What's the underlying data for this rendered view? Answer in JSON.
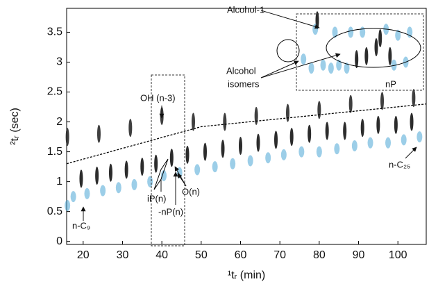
{
  "chart_data": {
    "type": "scatter",
    "x_label": "¹tᵣ (min)",
    "y_label": "²tᵣ (sec)",
    "xlim": [
      15.8,
      107.2
    ],
    "ylim": [
      -0.05,
      3.9
    ],
    "xticks": [
      20,
      30,
      40,
      50,
      60,
      70,
      80,
      90,
      100
    ],
    "yticks": [
      0,
      0.5,
      1,
      1.5,
      2,
      2.5,
      3,
      3.5
    ],
    "annotations": {
      "alcohol_1": "Alcohol-1",
      "alcohol": "Alcohol",
      "isomers": "isomers",
      "np": "nP",
      "oh": "OH (n-3)",
      "ip": "iP(n)",
      "nPn": "-nP(n)",
      "on": "O(n)",
      "c9": "n-C₉",
      "c25": "n-C₂₅"
    },
    "boundary": {
      "x": [
        15.8,
        50,
        107.2
      ],
      "y": [
        1.3,
        1.92,
        2.3
      ]
    },
    "series": [
      {
        "marker": "streak",
        "color": "#151515",
        "x": [
          19.5,
          23.5,
          27,
          31,
          35,
          38.5,
          42.5,
          46.5,
          51,
          55.5,
          60,
          64.5,
          69,
          73,
          77.5,
          82,
          86.5,
          91,
          95,
          99.5,
          103.5
        ],
        "y": [
          1.05,
          1.1,
          1.15,
          1.2,
          1.25,
          1.3,
          1.4,
          1.45,
          1.5,
          1.55,
          1.6,
          1.65,
          1.7,
          1.75,
          1.8,
          1.85,
          1.85,
          1.9,
          1.95,
          1.95,
          2.0
        ]
      },
      {
        "marker": "spot",
        "color": "#4ba6d6",
        "x": [
          16,
          17.5,
          21,
          25,
          29,
          33,
          37,
          40.5,
          44.5,
          49,
          53.5,
          58,
          62.5,
          67,
          71,
          75.5,
          80,
          84.5,
          89,
          93,
          97.5,
          101.5,
          105.5
        ],
        "y": [
          0.6,
          0.75,
          0.8,
          0.85,
          0.9,
          0.95,
          1.0,
          1.1,
          1.15,
          1.2,
          1.25,
          1.3,
          1.35,
          1.4,
          1.45,
          1.5,
          1.5,
          1.55,
          1.6,
          1.65,
          1.65,
          1.7,
          1.75
        ]
      },
      {
        "marker": "streak",
        "color": "#2a2a2a",
        "x": [
          16,
          24,
          32,
          40,
          48,
          56,
          64,
          72,
          80,
          88,
          96,
          104
        ],
        "y": [
          1.75,
          1.8,
          1.9,
          2.1,
          2.0,
          2.0,
          2.1,
          2.15,
          2.2,
          2.3,
          2.35,
          2.4
        ]
      },
      {
        "marker": "streak",
        "color": "#151515",
        "x": [
          79.5,
          89.5,
          92,
          94.5,
          95.5,
          98
        ],
        "y": [
          3.7,
          3.05,
          3.1,
          3.25,
          3.4,
          3.1
        ]
      },
      {
        "marker": "spot",
        "color": "#4ba6d6",
        "x": [
          76,
          78,
          81,
          83,
          85,
          87,
          91,
          97,
          100,
          103,
          79,
          84,
          88,
          99,
          102
        ],
        "y": [
          3.05,
          2.9,
          2.95,
          2.9,
          2.95,
          2.9,
          3.5,
          3.55,
          3.45,
          3.5,
          3.55,
          3.5,
          3.5,
          2.95,
          3.0
        ]
      }
    ]
  }
}
